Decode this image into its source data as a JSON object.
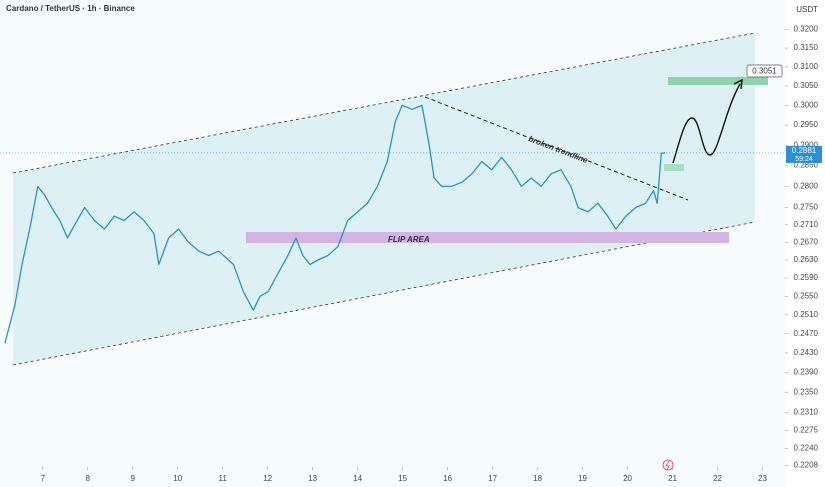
{
  "chart_data": {
    "type": "line",
    "title": "Cardano / TetherUS · 1h · Binance",
    "y_axis_unit": "USDT",
    "color": "#2a8fd8",
    "log_scale": true,
    "x": [
      6.16,
      6.38,
      6.54,
      6.71,
      6.89,
      7.04,
      7.2,
      7.38,
      7.55,
      7.71,
      7.93,
      8.15,
      8.37,
      8.59,
      8.81,
      9.03,
      9.25,
      9.47,
      9.58,
      9.8,
      10.02,
      10.24,
      10.47,
      10.69,
      10.91,
      11.24,
      11.46,
      11.68,
      11.83,
      12.01,
      12.23,
      12.45,
      12.63,
      12.78,
      12.94,
      13.12,
      13.34,
      13.56,
      13.78,
      14.0,
      14.22,
      14.44,
      14.66,
      14.84,
      14.99,
      15.21,
      15.43,
      15.59,
      15.7,
      15.87,
      16.09,
      16.32,
      16.54,
      16.76,
      16.98,
      17.2,
      17.42,
      17.64,
      17.86,
      18.08,
      18.3,
      18.52,
      18.74,
      18.9,
      19.12,
      19.34,
      19.56,
      19.74,
      19.96,
      20.18,
      20.4,
      20.58,
      20.66,
      20.75,
      20.83
    ],
    "values": [
      0.245,
      0.253,
      0.262,
      0.27,
      0.28,
      0.278,
      0.275,
      0.272,
      0.268,
      0.271,
      0.275,
      0.272,
      0.27,
      0.273,
      0.272,
      0.274,
      0.272,
      0.269,
      0.262,
      0.268,
      0.27,
      0.267,
      0.265,
      0.264,
      0.265,
      0.262,
      0.256,
      0.252,
      0.255,
      0.256,
      0.26,
      0.264,
      0.268,
      0.264,
      0.262,
      0.263,
      0.264,
      0.266,
      0.272,
      0.274,
      0.276,
      0.28,
      0.286,
      0.296,
      0.3,
      0.299,
      0.3,
      0.29,
      0.282,
      0.28,
      0.28,
      0.281,
      0.283,
      0.286,
      0.284,
      0.287,
      0.284,
      0.28,
      0.282,
      0.28,
      0.283,
      0.284,
      0.28,
      0.275,
      0.274,
      0.276,
      0.273,
      0.27,
      0.273,
      0.275,
      0.276,
      0.279,
      0.276,
      0.288,
      0.2881
    ],
    "xlim": [
      6.05,
      23.5
    ],
    "xticks": [
      7,
      8,
      9,
      10,
      11,
      12,
      13,
      14,
      15,
      16,
      17,
      18,
      19,
      20,
      21,
      22,
      23
    ],
    "ylim": [
      0.2205,
      0.324
    ],
    "yticks": [
      {
        "value": 0.2208,
        "label": "0.2208"
      },
      {
        "value": 0.224,
        "label": "0.2240"
      },
      {
        "value": 0.2275,
        "label": "0.2275"
      },
      {
        "value": 0.231,
        "label": "0.2310"
      },
      {
        "value": 0.235,
        "label": "0.2350"
      },
      {
        "value": 0.239,
        "label": "0.2390"
      },
      {
        "value": 0.243,
        "label": "0.2430"
      },
      {
        "value": 0.247,
        "label": "0.2470"
      },
      {
        "value": 0.251,
        "label": "0.2510"
      },
      {
        "value": 0.255,
        "label": "0.2550"
      },
      {
        "value": 0.259,
        "label": "0.2590"
      },
      {
        "value": 0.263,
        "label": "0.2630"
      },
      {
        "value": 0.267,
        "label": "0.2670"
      },
      {
        "value": 0.271,
        "label": "0.2710"
      },
      {
        "value": 0.275,
        "label": "0.2750"
      },
      {
        "value": 0.28,
        "label": "0.2800"
      },
      {
        "value": 0.285,
        "label": "0.2850"
      },
      {
        "value": 0.29,
        "label": "0.2900"
      },
      {
        "value": 0.295,
        "label": "0.2950"
      },
      {
        "value": 0.3,
        "label": "0.3000"
      },
      {
        "value": 0.305,
        "label": "0.3050"
      },
      {
        "value": 0.31,
        "label": "0.3100"
      },
      {
        "value": 0.315,
        "label": "0.3150"
      },
      {
        "value": 0.32,
        "label": "0.3200"
      }
    ],
    "last_price": 0.2881,
    "countdown": "59:24",
    "target_price": 0.3051,
    "annotations": [
      "broken trendline",
      "FLIP AREA"
    ],
    "grid": false
  }
}
